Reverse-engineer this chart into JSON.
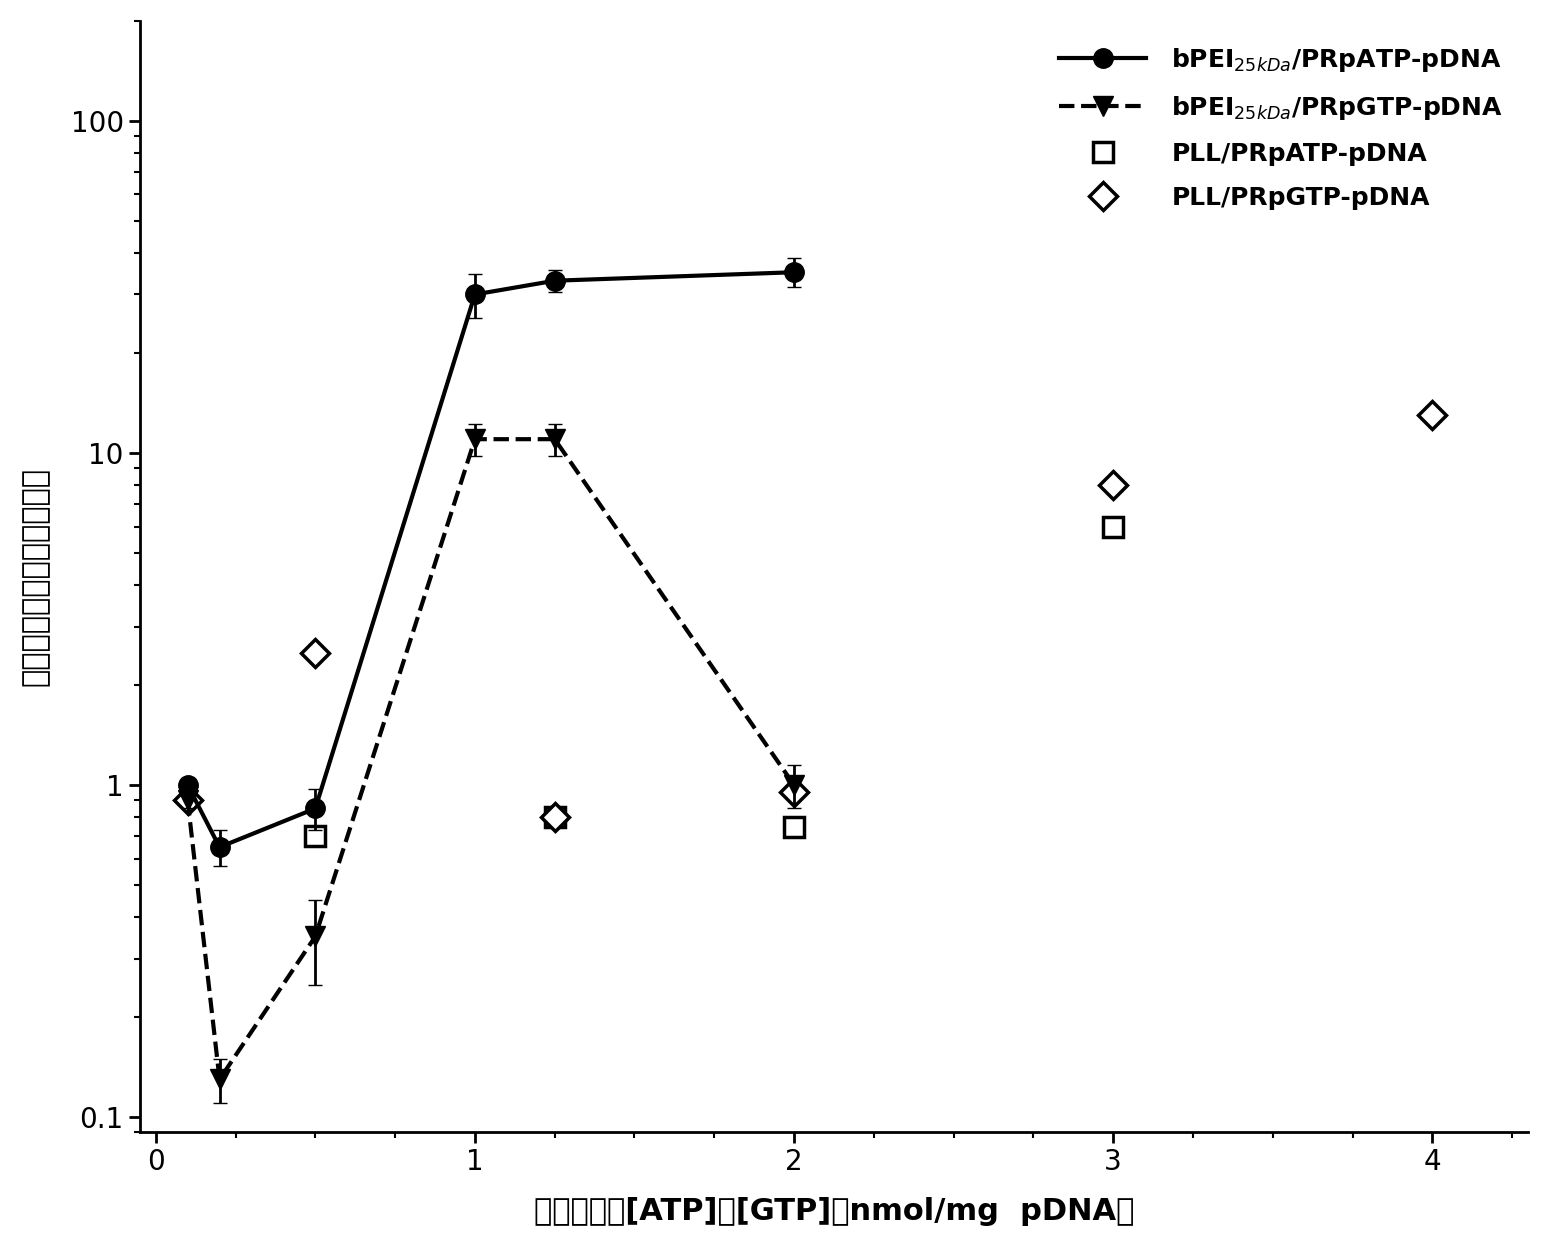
{
  "series1_x": [
    0.1,
    0.2,
    0.5,
    1.0,
    1.25,
    2.0
  ],
  "series1_y": [
    1.0,
    0.65,
    0.85,
    30.0,
    33.0,
    35.0
  ],
  "series1_yerr_low": [
    0.05,
    0.08,
    0.12,
    4.5,
    2.5,
    3.5
  ],
  "series1_yerr_high": [
    0.05,
    0.08,
    0.12,
    4.5,
    2.5,
    3.5
  ],
  "series2_x": [
    0.1,
    0.2,
    0.5,
    1.0,
    1.25,
    2.0
  ],
  "series2_y": [
    0.9,
    0.13,
    0.35,
    11.0,
    11.0,
    1.0
  ],
  "series2_yerr_low": [
    0.05,
    0.02,
    0.1,
    1.2,
    1.2,
    0.15
  ],
  "series2_yerr_high": [
    0.05,
    0.02,
    0.1,
    1.2,
    1.2,
    0.15
  ],
  "series3_x": [
    0.5,
    1.25,
    2.0,
    3.0
  ],
  "series3_y": [
    0.7,
    0.8,
    0.75,
    6.0
  ],
  "series4_x": [
    0.1,
    0.5,
    1.25,
    2.0,
    3.0,
    4.0
  ],
  "series4_y": [
    0.9,
    2.5,
    0.8,
    0.95,
    8.0,
    13.0
  ],
  "xlabel": "复合物中的[ATP]或[GTP]（nmol/mg  pDNA）",
  "ylabel": "正交化的转染效率（折线）",
  "legend_labels": [
    "bPEI$_{25 kDa}$/PRpATP-pDNA",
    "bPEI$_{25 kDa}$/PRpGTP-pDNA",
    "PLL/PRpATP-pDNA",
    "PLL/PRpGTP-pDNA"
  ],
  "xlim": [
    -0.05,
    4.3
  ],
  "ylim_log": [
    0.09,
    200
  ],
  "background_color": "#ffffff",
  "line_color": "#000000",
  "fontsize_label": 22,
  "fontsize_tick": 20,
  "fontsize_legend": 18
}
